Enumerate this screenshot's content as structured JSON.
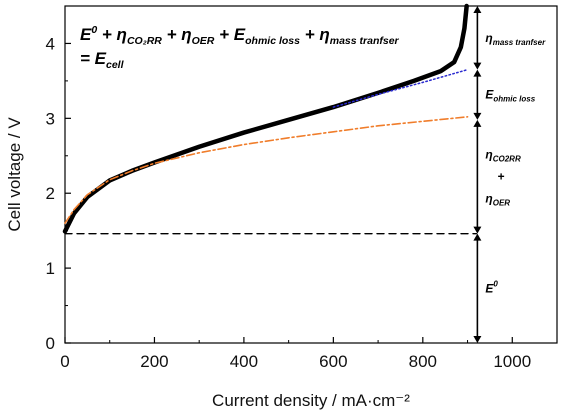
{
  "chart_data": {
    "type": "line",
    "xlabel": "Current density / mA·cm⁻²",
    "ylabel": "Cell voltage / V",
    "xlim": [
      0,
      1100
    ],
    "ylim": [
      0,
      4.5
    ],
    "x_ticks": [
      0,
      200,
      400,
      600,
      800,
      1000
    ],
    "x_tick_labels": [
      "0",
      "200",
      "400",
      "600",
      "800",
      "1000"
    ],
    "y_ticks": [
      0,
      1,
      2,
      3,
      4
    ],
    "y_tick_labels": [
      "0",
      "1",
      "2",
      "3",
      "4"
    ],
    "series": [
      {
        "style": "solid-thick",
        "color": "#000000",
        "x": [
          0,
          20,
          50,
          100,
          150,
          200,
          300,
          400,
          500,
          600,
          700,
          780,
          840,
          870,
          885,
          893,
          898
        ],
        "y": [
          1.49,
          1.73,
          1.95,
          2.17,
          2.3,
          2.41,
          2.62,
          2.81,
          2.98,
          3.15,
          3.34,
          3.5,
          3.63,
          3.75,
          3.95,
          4.2,
          4.5
        ]
      },
      {
        "style": "dotted",
        "color": "#2a2ad0",
        "x": [
          600,
          700,
          800,
          900
        ],
        "y": [
          3.15,
          3.32,
          3.48,
          3.65
        ]
      },
      {
        "style": "dash-dot",
        "color": "#f07d2b",
        "x": [
          0,
          20,
          50,
          100,
          150,
          200,
          300,
          400,
          500,
          600,
          700,
          800,
          900
        ],
        "y": [
          1.6,
          1.78,
          1.98,
          2.18,
          2.3,
          2.4,
          2.54,
          2.65,
          2.74,
          2.82,
          2.9,
          2.96,
          3.02
        ]
      },
      {
        "style": "dashed",
        "color": "#000000",
        "x": [
          0,
          920
        ],
        "y": [
          1.46,
          1.46
        ]
      }
    ],
    "bracket_x": 922,
    "brackets": [
      {
        "y_from": 0,
        "y_to": 1.46,
        "label_main": "E",
        "label_sup": "0",
        "label_sub": "",
        "label_lines": []
      },
      {
        "y_from": 1.46,
        "y_to": 2.98,
        "label_main": "",
        "label_sup": "",
        "label_sub": "",
        "label_lines": [
          {
            "main": "η",
            "sub": "CO2RR"
          },
          {
            "main": "+",
            "sub": ""
          },
          {
            "main": "η",
            "sub": "OER"
          }
        ]
      },
      {
        "y_from": 2.98,
        "y_to": 3.65,
        "label_main": "E",
        "label_sup": "",
        "label_sub": "ohmic loss",
        "label_lines": []
      },
      {
        "y_from": 3.65,
        "y_to": 4.5,
        "label_main": "η",
        "label_sup": "",
        "label_sub": "mass tranfser",
        "label_lines": []
      }
    ],
    "equation": {
      "line1": [
        {
          "t": "E",
          "sub": "",
          "sup": "0"
        },
        {
          "t": " + η",
          "sub": "CO₂RR",
          "sup": ""
        },
        {
          "t": " + η",
          "sub": "OER",
          "sup": ""
        },
        {
          "t": " + E",
          "sub": "ohmic loss",
          "sup": ""
        },
        {
          "t": "  + η",
          "sub": "mass tranfser",
          "sup": ""
        }
      ],
      "line2": [
        {
          "t": "= E",
          "sub": "cell",
          "sup": ""
        }
      ]
    }
  }
}
